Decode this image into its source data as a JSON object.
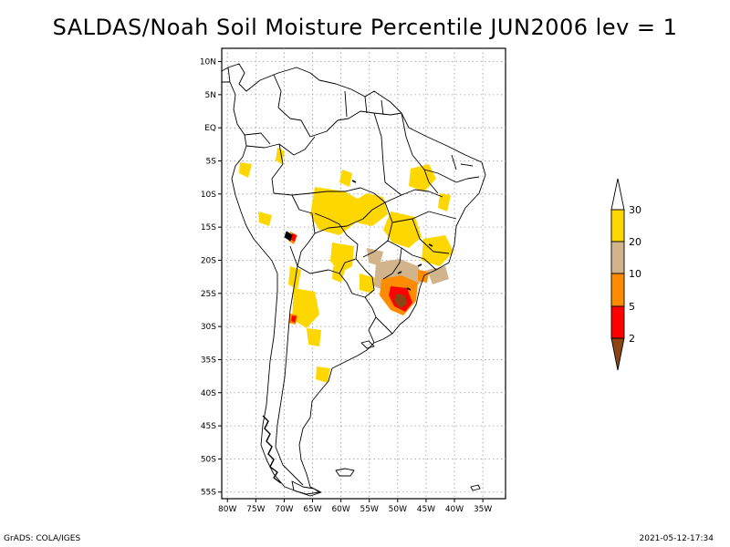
{
  "title": "SALDAS/Noah Soil Moisture Percentile JUN2006 lev = 1",
  "footer_left": "GrADS: COLA/IGES",
  "footer_right": "2021-05-12-17:34",
  "map": {
    "lon_range": [
      -81,
      -31
    ],
    "lat_range": [
      -56,
      12
    ],
    "lat_ticks": [
      "10N",
      "5N",
      "EQ",
      "5S",
      "10S",
      "15S",
      "20S",
      "25S",
      "30S",
      "35S",
      "40S",
      "45S",
      "50S",
      "55S"
    ],
    "lon_ticks": [
      "80W",
      "75W",
      "70W",
      "65W",
      "60W",
      "55W",
      "50W",
      "45W",
      "40W",
      "35W"
    ],
    "grid": true
  },
  "legend": {
    "labels": [
      "30",
      "20",
      "10",
      "5",
      "2"
    ],
    "colors": {
      "above_30": "#ffffff",
      "c20_30": "#ffd700",
      "c10_20": "#d2b48c",
      "c5_10": "#ff8c00",
      "c2_5": "#ff0000",
      "below_2": "#8b4513"
    }
  }
}
